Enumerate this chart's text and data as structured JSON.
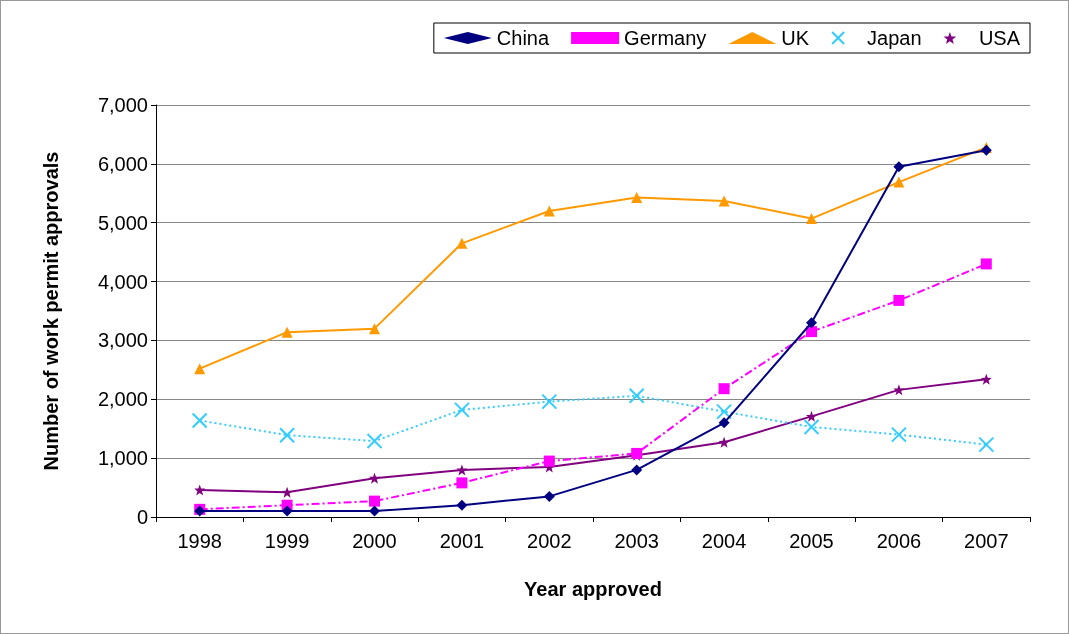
{
  "chart_data": {
    "type": "line",
    "xlabel": "Year approved",
    "ylabel": "Number of work permit approvals",
    "categories": [
      "1998",
      "1999",
      "2000",
      "2001",
      "2002",
      "2003",
      "2004",
      "2005",
      "2006",
      "2007"
    ],
    "series": [
      {
        "name": "China",
        "color": "#000080",
        "marker": "diamond",
        "line_style": "solid",
        "values": [
          100,
          100,
          100,
          200,
          350,
          800,
          1600,
          3300,
          5950,
          6230
        ]
      },
      {
        "name": "Germany",
        "color": "#ff00ff",
        "marker": "square",
        "line_style": "dashed",
        "values": [
          130,
          200,
          270,
          580,
          950,
          1080,
          2180,
          3150,
          3680,
          4300
        ]
      },
      {
        "name": "UK",
        "color": "#ff9900",
        "marker": "triangle",
        "line_style": "solid",
        "values": [
          2520,
          3140,
          3200,
          4650,
          5200,
          5430,
          5370,
          5070,
          5690,
          6280
        ]
      },
      {
        "name": "Japan",
        "color": "#33ccff",
        "marker": "cross",
        "line_style": "dotted",
        "values": [
          1640,
          1390,
          1290,
          1820,
          1960,
          2060,
          1790,
          1530,
          1400,
          1230
        ]
      },
      {
        "name": "USA",
        "color": "#800080",
        "marker": "star",
        "line_style": "solid",
        "values": [
          460,
          420,
          660,
          800,
          850,
          1050,
          1270,
          1710,
          2160,
          2340
        ]
      }
    ],
    "ylim": [
      0,
      7000
    ],
    "yticks": [
      0,
      {
        "value": 1000,
        "label": "1,000"
      },
      {
        "value": 2000,
        "label": "2,000"
      },
      {
        "value": 3000,
        "label": "3,000"
      },
      {
        "value": 4000,
        "label": "4,000"
      },
      {
        "value": 5000,
        "label": "5,000"
      },
      {
        "value": 6000,
        "label": "6,000"
      },
      {
        "value": 7000,
        "label": "7,000"
      }
    ],
    "grid": "y",
    "legend": "top right"
  }
}
